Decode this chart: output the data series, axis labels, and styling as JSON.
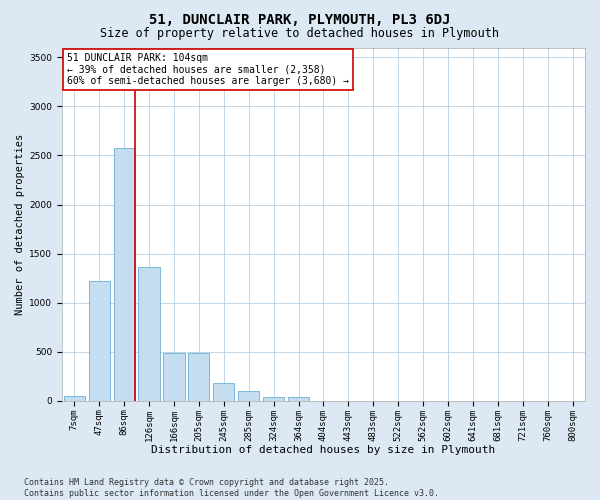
{
  "title": "51, DUNCLAIR PARK, PLYMOUTH, PL3 6DJ",
  "subtitle": "Size of property relative to detached houses in Plymouth",
  "xlabel": "Distribution of detached houses by size in Plymouth",
  "ylabel": "Number of detached properties",
  "categories": [
    "7sqm",
    "47sqm",
    "86sqm",
    "126sqm",
    "166sqm",
    "205sqm",
    "245sqm",
    "285sqm",
    "324sqm",
    "364sqm",
    "404sqm",
    "443sqm",
    "483sqm",
    "522sqm",
    "562sqm",
    "602sqm",
    "641sqm",
    "681sqm",
    "721sqm",
    "760sqm",
    "800sqm"
  ],
  "values": [
    50,
    1220,
    2580,
    1360,
    490,
    490,
    185,
    100,
    45,
    45,
    0,
    0,
    0,
    0,
    0,
    0,
    0,
    0,
    0,
    0,
    0
  ],
  "bar_color": "#c5ddf0",
  "bar_edge_color": "#6baed6",
  "vline_color": "#cc0000",
  "vline_x_idx": 2,
  "annotation_text": "51 DUNCLAIR PARK: 104sqm\n← 39% of detached houses are smaller (2,358)\n60% of semi-detached houses are larger (3,680) →",
  "annotation_box_color": "white",
  "annotation_box_edge_color": "#cc0000",
  "ylim": [
    0,
    3600
  ],
  "yticks": [
    0,
    500,
    1000,
    1500,
    2000,
    2500,
    3000,
    3500
  ],
  "bg_color": "#dce9f5",
  "plot_bg_color": "white",
  "grid_color": "#b8cfe0",
  "footer": "Contains HM Land Registry data © Crown copyright and database right 2025.\nContains public sector information licensed under the Open Government Licence v3.0.",
  "title_fontsize": 10,
  "subtitle_fontsize": 8.5,
  "xlabel_fontsize": 8,
  "ylabel_fontsize": 7.5,
  "tick_fontsize": 6.5,
  "annotation_fontsize": 7,
  "footer_fontsize": 6
}
